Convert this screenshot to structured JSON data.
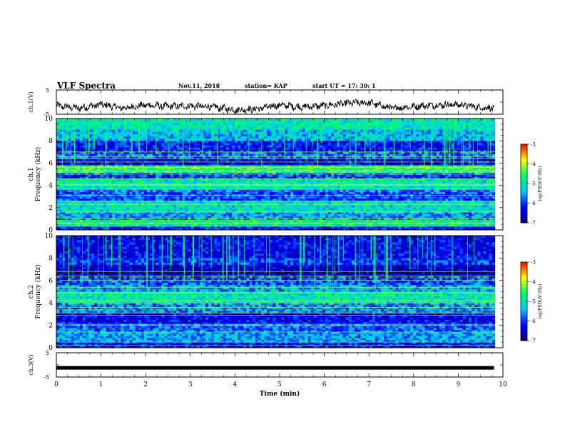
{
  "header": {
    "title": "VLF Spectra",
    "date": "Nov.11, 2018",
    "station": "station= KAP",
    "start": "start  UT =   17: 30: 1"
  },
  "chart_data": [
    {
      "type": "line",
      "panel": "ch1-waveform",
      "ylabel": "ch.1(V)",
      "ylim": [
        -5,
        5
      ],
      "yticks": [
        "5",
        "-5"
      ],
      "x": [
        0,
        0.5,
        1,
        1.5,
        2,
        2.5,
        3,
        3.5,
        4,
        4.5,
        5,
        5.5,
        6,
        6.5,
        7,
        7.5,
        8,
        8.5,
        9,
        9.5,
        9.8
      ],
      "values": [
        -1.5,
        -2.5,
        -1,
        -2.5,
        -1.2,
        -1.8,
        -1.5,
        -2,
        -3.2,
        -2.8,
        -1.2,
        -2,
        -1.5,
        -0.5,
        -0.2,
        -2.5,
        -1.8,
        -1.2,
        -1,
        -2.2,
        -2.5
      ]
    },
    {
      "type": "heatmap",
      "panel": "ch1-spectrogram",
      "ylabel": "ch.1 Frequency (kHz)",
      "ylim": [
        0,
        10
      ],
      "yticks": [
        "0",
        "2",
        "4",
        "6",
        "8",
        "10"
      ],
      "colorbar": {
        "label": "log(PSD)(V²/Hz)",
        "range": [
          -7,
          -3
        ],
        "ticks": [
          "-3",
          "-4",
          "-5",
          "-6",
          "-7"
        ]
      },
      "bands": [
        {
          "f": [
            9.0,
            10.0
          ],
          "level": -5.0
        },
        {
          "f": [
            8.0,
            9.0
          ],
          "level": -5.4
        },
        {
          "f": [
            7.0,
            8.0
          ],
          "level": -6.2
        },
        {
          "f": [
            6.4,
            7.0
          ],
          "level": -5.8
        },
        {
          "f": [
            5.8,
            6.4
          ],
          "level": -6.3
        },
        {
          "f": [
            5.1,
            5.8
          ],
          "level": -4.6
        },
        {
          "f": [
            4.6,
            5.1
          ],
          "level": -6.0
        },
        {
          "f": [
            3.6,
            4.6
          ],
          "level": -5.0
        },
        {
          "f": [
            2.6,
            3.6
          ],
          "level": -5.9
        },
        {
          "f": [
            1.6,
            2.6
          ],
          "level": -5.1
        },
        {
          "f": [
            0.9,
            1.6
          ],
          "level": -5.6
        },
        {
          "f": [
            0.3,
            0.9
          ],
          "level": -4.9
        },
        {
          "f": [
            0.0,
            0.3
          ],
          "level": -6.1
        }
      ],
      "lines": [
        0.6,
        1.0,
        1.6,
        2.3,
        2.6,
        3.1,
        3.5,
        4.0,
        4.1,
        4.6,
        5.0,
        5.3,
        5.6,
        6.1,
        6.4,
        6.6,
        7.0
      ]
    },
    {
      "type": "heatmap",
      "panel": "ch2-spectrogram",
      "ylabel": "ch.2 Frequency (kHz)",
      "ylim": [
        0,
        10
      ],
      "yticks": [
        "0",
        "2",
        "4",
        "6",
        "8",
        "10"
      ],
      "colorbar": {
        "label": "log(PSD)(V²/Hz)",
        "range": [
          -7,
          -3
        ],
        "ticks": [
          "-3",
          "-4",
          "-5",
          "-6",
          "-7"
        ]
      },
      "bands": [
        {
          "f": [
            8.0,
            10.0
          ],
          "level": -6.3
        },
        {
          "f": [
            7.4,
            8.0
          ],
          "level": -6.0
        },
        {
          "f": [
            6.4,
            7.4
          ],
          "level": -6.5
        },
        {
          "f": [
            5.6,
            6.4
          ],
          "level": -5.9
        },
        {
          "f": [
            5.0,
            5.6
          ],
          "level": -5.5
        },
        {
          "f": [
            4.0,
            5.0
          ],
          "level": -5.0
        },
        {
          "f": [
            3.1,
            4.0
          ],
          "level": -5.6
        },
        {
          "f": [
            2.1,
            3.1
          ],
          "level": -6.3
        },
        {
          "f": [
            1.4,
            2.1
          ],
          "level": -5.8
        },
        {
          "f": [
            0.5,
            1.4
          ],
          "level": -5.5
        },
        {
          "f": [
            0.0,
            0.5
          ],
          "level": -6.2
        }
      ],
      "lines": [
        0.2,
        0.5,
        1.4,
        2.0,
        2.1,
        2.9,
        3.1,
        3.6,
        4.0,
        4.2,
        4.9,
        5.4,
        6.0,
        6.4,
        6.8
      ]
    },
    {
      "type": "line",
      "panel": "ch3-waveform",
      "ylabel": "ch.3(V)",
      "ylim": [
        -5,
        5
      ],
      "yticks": [
        "5",
        "-5"
      ],
      "x": [
        0,
        9.8
      ],
      "values": [
        -1.2,
        -1.2
      ]
    }
  ],
  "xaxis": {
    "label": "Time  (min)",
    "range": [
      0,
      10
    ],
    "ticks": [
      "0",
      "1",
      "2",
      "3",
      "4",
      "5",
      "6",
      "7",
      "8",
      "9",
      "10"
    ]
  },
  "colors": {
    "cmap": [
      "#00007a",
      "#0000ff",
      "#00c8ff",
      "#00ff64",
      "#ffff00",
      "#ff0000",
      "#ffffff"
    ]
  }
}
